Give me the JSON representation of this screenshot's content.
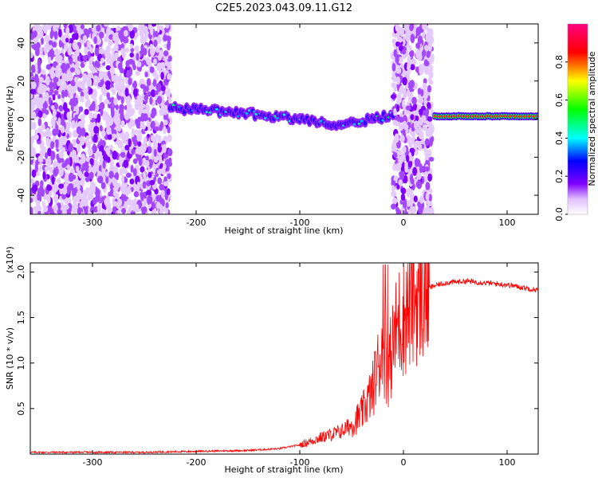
{
  "title": "C2E5.2023.043.09.11.G12",
  "chart_data": [
    {
      "type": "heatmap",
      "title": "C2E5.2023.043.09.11.G12",
      "xlabel": "Height of straight line (km)",
      "ylabel": "Frequency (Hz)",
      "xlim": [
        -360,
        130
      ],
      "ylim": [
        -50,
        50
      ],
      "x_ticks": [
        -300,
        -200,
        -100,
        0,
        100
      ],
      "y_ticks": [
        -40,
        -20,
        0,
        20,
        40
      ],
      "colorbar": {
        "label": "Normalized spectral amplitude",
        "range": [
          0,
          1
        ],
        "ticks": [
          0.0,
          0.2,
          0.4,
          0.6,
          0.8
        ],
        "colormap": [
          "#ffffff",
          "#d9b3ff",
          "#8000ff",
          "#0000ff",
          "#00ffff",
          "#00ff00",
          "#ffff00",
          "#ff0000",
          "#ff0080"
        ]
      },
      "features": [
        {
          "name": "noise",
          "x_range": [
            -360,
            -225
          ],
          "f_range": [
            -50,
            50
          ],
          "amplitude": 0.25
        },
        {
          "name": "track",
          "points": [
            [
              -225,
              6
            ],
            [
              -200,
              5
            ],
            [
              -150,
              3
            ],
            [
              -100,
              0
            ],
            [
              -60,
              -3
            ],
            [
              -30,
              0
            ],
            [
              -10,
              2
            ]
          ],
          "amplitude": 0.45
        },
        {
          "name": "noise",
          "x_range": [
            -10,
            28
          ],
          "f_range": [
            -50,
            50
          ],
          "amplitude": 0.25
        },
        {
          "name": "track",
          "points": [
            [
              30,
              1.5
            ],
            [
              130,
              1.5
            ]
          ],
          "amplitude": 0.85
        }
      ]
    },
    {
      "type": "line",
      "xlabel": "Height of straight line (km)",
      "ylabel": "SNR (10 * v/v)",
      "y_multiplier": "(x10⁴)",
      "xlim": [
        -360,
        130
      ],
      "ylim": [
        0,
        2.1
      ],
      "x_ticks": [
        -300,
        -200,
        -100,
        0,
        100
      ],
      "y_ticks": [
        0.5,
        1.0,
        1.5,
        2.0
      ],
      "y_tick_labels": [
        "0.5",
        "1.0",
        "1.5",
        "2.0"
      ],
      "series": [
        {
          "color": "#ff0000",
          "x": [
            -360,
            -300,
            -250,
            -200,
            -150,
            -120,
            -100,
            -80,
            -60,
            -50,
            -40,
            -30,
            -25,
            -20,
            -15,
            -10,
            -5,
            0,
            10,
            20,
            30,
            40,
            60,
            80,
            90,
            100,
            110,
            120,
            130
          ],
          "y": [
            0.02,
            0.02,
            0.02,
            0.03,
            0.04,
            0.06,
            0.1,
            0.18,
            0.25,
            0.32,
            0.45,
            0.7,
            0.95,
            1.15,
            0.9,
            1.2,
            1.45,
            1.5,
            1.7,
            1.8,
            1.85,
            1.88,
            1.9,
            1.88,
            1.87,
            1.86,
            1.84,
            1.82,
            1.8
          ]
        }
      ]
    }
  ]
}
